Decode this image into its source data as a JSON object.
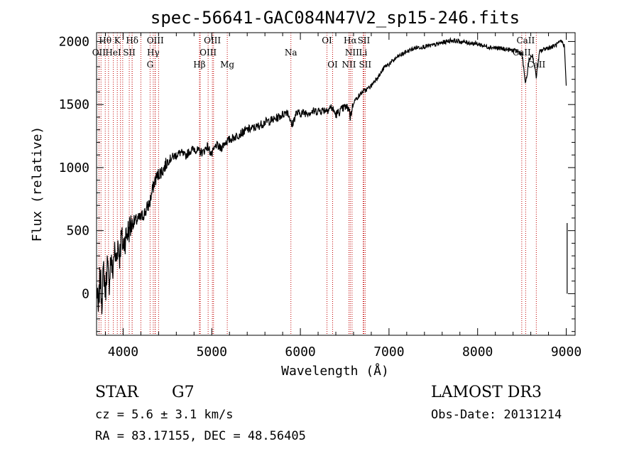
{
  "chart_data": {
    "type": "line",
    "title": "spec-56641-GAC084N47V2_sp15-246.fits",
    "xlabel": "Wavelength (Å)",
    "ylabel": "Flux (relative)",
    "xlim": [
      3700,
      9100
    ],
    "ylim": [
      -330,
      2070
    ],
    "x_ticks": [
      4000,
      5000,
      6000,
      7000,
      8000,
      9000
    ],
    "y_ticks": [
      0,
      500,
      1000,
      1500,
      2000
    ],
    "grid": false,
    "series": [
      {
        "name": "spectrum",
        "color": "#000000",
        "x": [
          3700,
          3720,
          3740,
          3760,
          3780,
          3800,
          3820,
          3840,
          3860,
          3880,
          3900,
          3920,
          3940,
          3960,
          3980,
          4000,
          4030,
          4060,
          4100,
          4150,
          4200,
          4250,
          4300,
          4330,
          4360,
          4400,
          4450,
          4500,
          4550,
          4600,
          4650,
          4700,
          4750,
          4800,
          4850,
          4900,
          4950,
          5000,
          5050,
          5100,
          5150,
          5200,
          5250,
          5300,
          5400,
          5500,
          5600,
          5700,
          5800,
          5850,
          5890,
          5900,
          5950,
          6000,
          6100,
          6200,
          6300,
          6350,
          6400,
          6450,
          6500,
          6550,
          6563,
          6600,
          6650,
          6700,
          6750,
          6800,
          6850,
          6900,
          6950,
          7000,
          7100,
          7200,
          7300,
          7400,
          7500,
          7600,
          7700,
          7800,
          7900,
          8000,
          8100,
          8200,
          8300,
          8400,
          8450,
          8500,
          8542,
          8580,
          8600,
          8620,
          8662,
          8700,
          8750,
          8800,
          8850,
          8900,
          8950,
          8980
        ],
        "y": [
          50,
          -150,
          150,
          -50,
          200,
          0,
          250,
          50,
          300,
          150,
          350,
          250,
          400,
          300,
          450,
          380,
          450,
          500,
          560,
          580,
          600,
          650,
          720,
          820,
          900,
          950,
          980,
          1050,
          1080,
          1100,
          1120,
          1090,
          1130,
          1150,
          1130,
          1120,
          1170,
          1100,
          1180,
          1150,
          1200,
          1220,
          1240,
          1260,
          1300,
          1320,
          1360,
          1380,
          1420,
          1450,
          1380,
          1320,
          1430,
          1430,
          1440,
          1450,
          1460,
          1480,
          1420,
          1450,
          1480,
          1470,
          1400,
          1520,
          1560,
          1600,
          1620,
          1650,
          1700,
          1740,
          1800,
          1820,
          1880,
          1920,
          1950,
          1960,
          1970,
          1990,
          2010,
          2000,
          1990,
          1980,
          1960,
          1950,
          1940,
          1930,
          1920,
          1900,
          1660,
          1850,
          1880,
          1890,
          1720,
          1920,
          1940,
          1950,
          1960,
          1980,
          2000,
          1960
        ]
      }
    ],
    "spectral_lines": [
      {
        "name": "Hθ",
        "wavelength": 3798,
        "row": 1
      },
      {
        "name": "K",
        "wavelength": 3934,
        "row": 1
      },
      {
        "name": "Hδ",
        "wavelength": 4102,
        "row": 1
      },
      {
        "name": "OII",
        "wavelength": 3727,
        "row": 2
      },
      {
        "name": "HeI",
        "wavelength": 3889,
        "row": 2
      },
      {
        "name": "SII",
        "wavelength": 4069,
        "row": 2
      },
      {
        "name": "OIII",
        "wavelength": 4363,
        "row": 1
      },
      {
        "name": "Hγ",
        "wavelength": 4340,
        "row": 2
      },
      {
        "name": "G",
        "wavelength": 4304,
        "row": 3
      },
      {
        "name": "OIII",
        "wavelength": 5007,
        "row": 1
      },
      {
        "name": "OIII",
        "wavelength": 4959,
        "row": 2
      },
      {
        "name": "Hβ",
        "wavelength": 4861,
        "row": 3
      },
      {
        "name": "Mg",
        "wavelength": 5175,
        "row": 3
      },
      {
        "name": "Na",
        "wavelength": 5893,
        "row": 2
      },
      {
        "name": "OI",
        "wavelength": 6300,
        "row": 1
      },
      {
        "name": "OI",
        "wavelength": 6364,
        "row": 3
      },
      {
        "name": "Hα",
        "wavelength": 6563,
        "row": 1
      },
      {
        "name": "SII",
        "wavelength": 6716,
        "row": 1
      },
      {
        "name": "NII",
        "wavelength": 6583,
        "row": 2
      },
      {
        "name": "Li",
        "wavelength": 6708,
        "row": 2
      },
      {
        "name": "NII",
        "wavelength": 6548,
        "row": 3
      },
      {
        "name": "SII",
        "wavelength": 6731,
        "row": 3
      },
      {
        "name": "CaII",
        "wavelength": 8542,
        "row": 1
      },
      {
        "name": "CaII",
        "wavelength": 8498,
        "row": 2
      },
      {
        "name": "CaII",
        "wavelength": 8662,
        "row": 3
      }
    ],
    "extra_line_marks": [
      3750,
      3835,
      3970,
      3995,
      4101,
      4200,
      4360,
      4400,
      4870,
      5020
    ]
  },
  "info": {
    "classification": "STAR",
    "subclass": "G7",
    "survey": "LAMOST DR3",
    "redshift": "cz = 5.6 ± 3.1 km/s",
    "obs_date": "Obs-Date: 20131214",
    "coords": "RA =  83.17155, DEC =  48.56405"
  }
}
